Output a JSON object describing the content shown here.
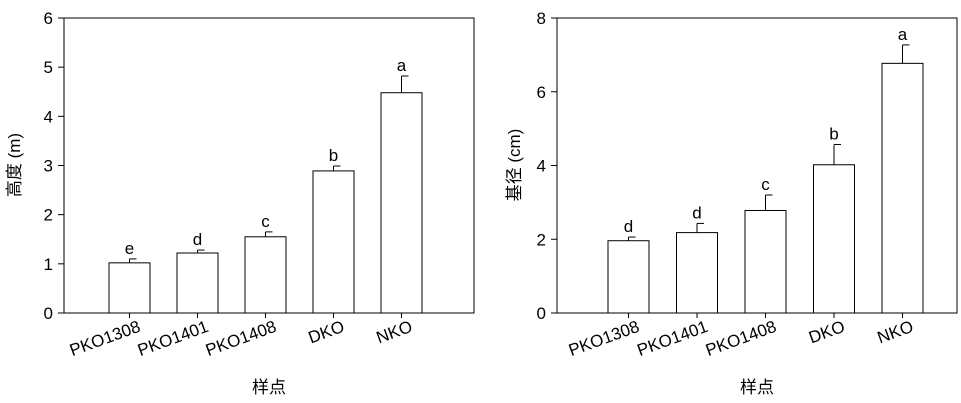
{
  "chart_data": [
    {
      "type": "bar",
      "title": "",
      "xlabel": "样点",
      "ylabel": "高度 (m)",
      "categories": [
        "PKO1308",
        "PKO1401",
        "PKO1408",
        "DKO",
        "NKO"
      ],
      "values": [
        1.02,
        1.22,
        1.55,
        2.89,
        4.48
      ],
      "errors": [
        0.08,
        0.06,
        0.1,
        0.1,
        0.34
      ],
      "significance": [
        "e",
        "d",
        "c",
        "b",
        "a"
      ],
      "ylim": [
        0,
        6
      ],
      "yticks": [
        0,
        1,
        2,
        3,
        4,
        5,
        6
      ],
      "grid": false,
      "bar_fill": "#ffffff",
      "bar_stroke": "#000000"
    },
    {
      "type": "bar",
      "title": "",
      "xlabel": "样点",
      "ylabel": "基径 (cm)",
      "categories": [
        "PKO1308",
        "PKO1401",
        "PKO1408",
        "DKO",
        "NKO"
      ],
      "values": [
        1.96,
        2.18,
        2.78,
        4.02,
        6.77
      ],
      "errors": [
        0.1,
        0.25,
        0.42,
        0.55,
        0.5
      ],
      "significance": [
        "d",
        "d",
        "c",
        "b",
        "a"
      ],
      "ylim": [
        0,
        8
      ],
      "yticks": [
        0,
        2,
        4,
        6,
        8
      ],
      "grid": false,
      "bar_fill": "#ffffff",
      "bar_stroke": "#000000"
    }
  ]
}
